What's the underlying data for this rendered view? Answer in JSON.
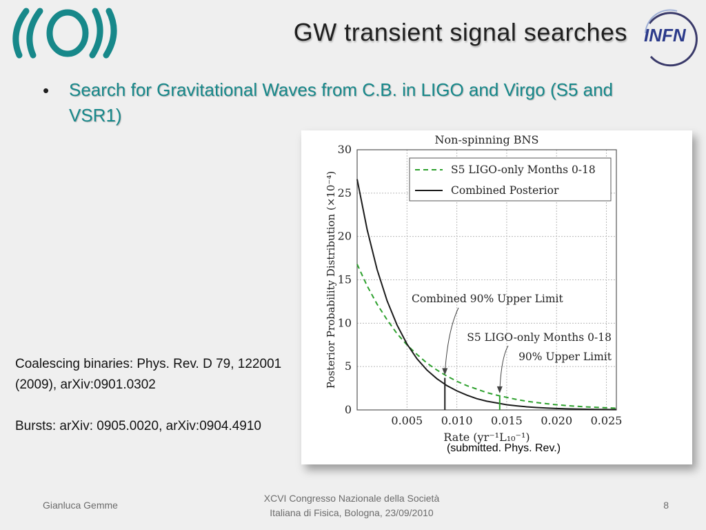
{
  "slide": {
    "title": "GW transient signal searches",
    "bullet": "Search for Gravitational Waves from C.B. in LIGO and Virgo (S5 and VSR1)",
    "caption": "(submitted. Phys. Rev.)",
    "refs": [
      "Coalescing binaries: Phys. Rev. D 79, 122001 (2009), arXiv:0901.0302",
      "Bursts: arXiv: 0905.0020, arXiv:0904.4910"
    ],
    "logo_right_text": "INFN",
    "footer": {
      "author": "Gianluca Gemme",
      "conference_line1": "XCVI Congresso Nazionale della Società",
      "conference_line2": "Italiana di Fisica, Bologna, 23/09/2010",
      "page": "8"
    }
  },
  "colors": {
    "teal": "#17888a",
    "green_dashed": "#2ca02c",
    "black": "#1a1a1a"
  },
  "chart_data": {
    "type": "line",
    "title": "Non-spinning BNS",
    "xlabel": "Rate (yr⁻¹L₁₀⁻¹)",
    "ylabel": "Posterior Probability Distribution (×10⁻⁴)",
    "xlim": [
      0,
      0.026
    ],
    "ylim": [
      0,
      30
    ],
    "x_ticks": [
      "0.005",
      "0.010",
      "0.015",
      "0.020",
      "0.025"
    ],
    "y_ticks": [
      "0",
      "5",
      "10",
      "15",
      "20",
      "25",
      "30"
    ],
    "grid": true,
    "legend_position": "top-right",
    "series": [
      {
        "name": "S5 LIGO-only Months 0-18",
        "style": "dashed",
        "color": "#2ca02c",
        "x": [
          0,
          0.001,
          0.002,
          0.003,
          0.004,
          0.005,
          0.006,
          0.007,
          0.008,
          0.009,
          0.01,
          0.011,
          0.012,
          0.013,
          0.014,
          0.015,
          0.016,
          0.017,
          0.018,
          0.019,
          0.02,
          0.021,
          0.022,
          0.023,
          0.024,
          0.025,
          0.026
        ],
        "values": [
          16.8,
          14.3,
          12.2,
          10.4,
          8.8,
          7.5,
          6.4,
          5.4,
          4.6,
          3.9,
          3.3,
          2.8,
          2.4,
          2.0,
          1.7,
          1.45,
          1.2,
          1.0,
          0.85,
          0.72,
          0.6,
          0.5,
          0.42,
          0.35,
          0.3,
          0.25,
          0.2
        ]
      },
      {
        "name": "Combined Posterior",
        "style": "solid",
        "color": "#1a1a1a",
        "x": [
          0,
          0.001,
          0.002,
          0.003,
          0.004,
          0.005,
          0.006,
          0.007,
          0.008,
          0.009,
          0.01,
          0.011,
          0.012,
          0.013,
          0.014,
          0.015,
          0.016,
          0.017,
          0.018,
          0.019,
          0.02,
          0.021,
          0.022,
          0.023,
          0.024,
          0.025,
          0.026
        ],
        "values": [
          26.6,
          20.8,
          16.2,
          12.6,
          9.8,
          7.6,
          5.9,
          4.6,
          3.6,
          2.8,
          2.2,
          1.7,
          1.3,
          1.0,
          0.8,
          0.6,
          0.47,
          0.36,
          0.28,
          0.22,
          0.17,
          0.13,
          0.1,
          0.08,
          0.06,
          0.05,
          0.04
        ]
      }
    ],
    "upper_limits": [
      {
        "label": "Combined 90% Upper Limit",
        "x": 0.0088,
        "y": 3.7,
        "color": "#1a1a1a"
      },
      {
        "label_line1": "S5 LIGO-only Months 0-18",
        "label_line2": "90% Upper Limit",
        "x": 0.0143,
        "y": 1.6,
        "color": "#2ca02c"
      }
    ]
  }
}
